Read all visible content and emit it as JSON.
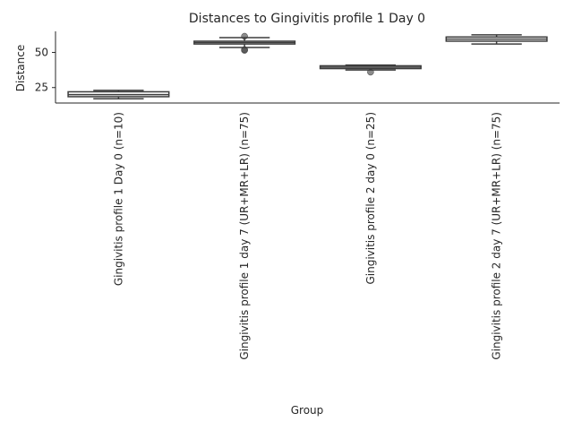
{
  "chart_data": {
    "type": "box",
    "title": "Distances to Gingivitis profile 1 Day 0",
    "xlabel": "Group",
    "ylabel": "Distance",
    "ylim": [
      14,
      65
    ],
    "yticks": [
      25,
      50
    ],
    "grid": false,
    "categories": [
      "Gingivitis profile 1 Day 0 (n=10)",
      "Gingivitis profile 1 day 7 (UR+MR+LR) (n=75)",
      "Gingivitis profile 2 day 0 (n=25)",
      "Gingivitis profile 2 day 7 (UR+MR+LR) (n=75)"
    ],
    "boxes": [
      {
        "whisker_low": 17,
        "q1": 18.5,
        "median": 20,
        "q3": 22,
        "whisker_high": 23,
        "outliers": []
      },
      {
        "whisker_low": 53.5,
        "q1": 56,
        "median": 57,
        "q3": 58,
        "whisker_high": 60.5,
        "outliers": [
          52,
          51.5,
          61.5
        ]
      },
      {
        "whisker_low": 37.5,
        "q1": 38.5,
        "median": 39.5,
        "q3": 40.5,
        "whisker_high": 41,
        "outliers": [
          36
        ]
      },
      {
        "whisker_low": 56,
        "q1": 58,
        "median": 59.5,
        "q3": 61,
        "whisker_high": 62.5,
        "outliers": []
      }
    ]
  }
}
